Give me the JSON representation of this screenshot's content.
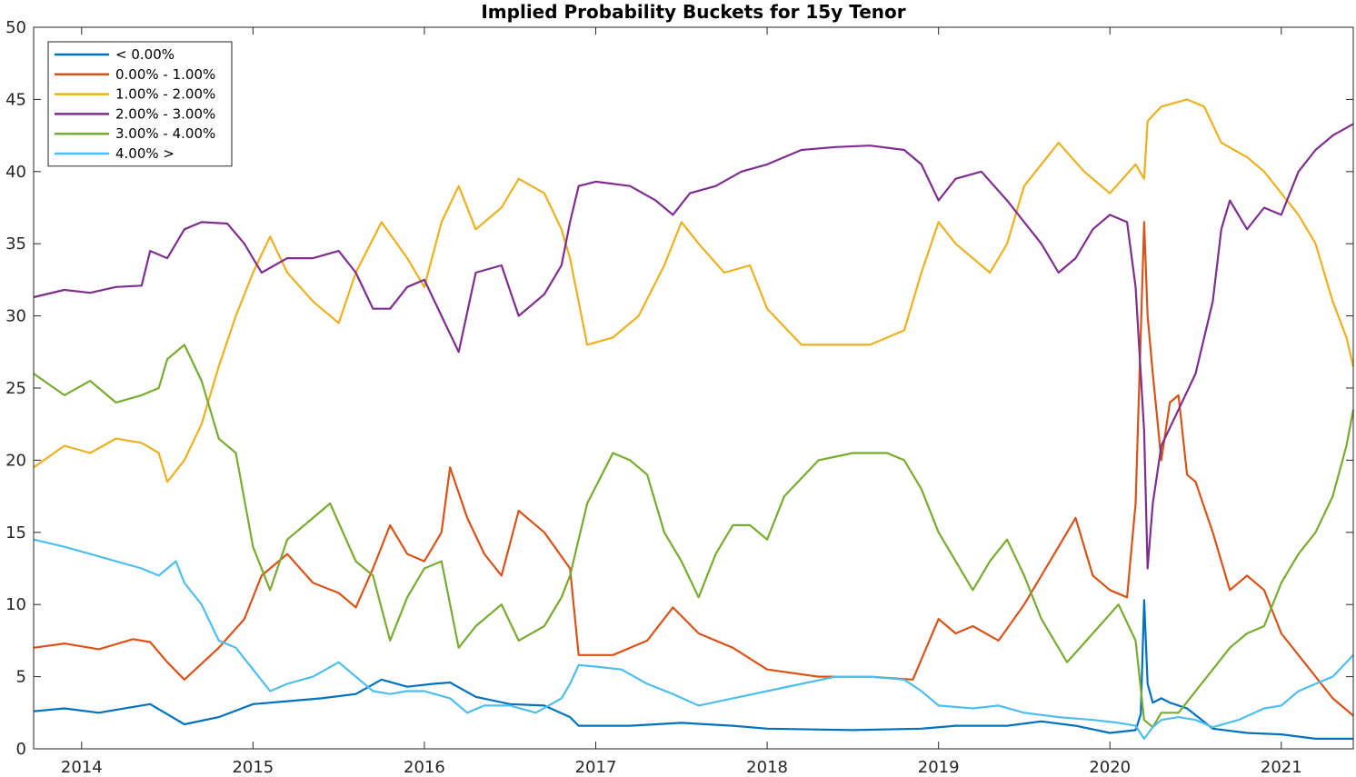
{
  "chart_data": {
    "type": "line",
    "title": "Implied Probability Buckets for 15y Tenor",
    "xlabel": "",
    "ylabel": "",
    "xlim": [
      2013.72,
      2021.42
    ],
    "ylim": [
      0,
      50
    ],
    "x_ticks": [
      2014,
      2015,
      2016,
      2017,
      2018,
      2019,
      2020,
      2021
    ],
    "x_tick_labels": [
      "2014",
      "2015",
      "2016",
      "2017",
      "2018",
      "2019",
      "2020",
      "2021"
    ],
    "y_ticks": [
      0,
      5,
      10,
      15,
      20,
      25,
      30,
      35,
      40,
      45,
      50
    ],
    "y_tick_labels": [
      "0",
      "5",
      "10",
      "15",
      "20",
      "25",
      "30",
      "35",
      "40",
      "45",
      "50"
    ],
    "grid": false,
    "legend_position": "top-left",
    "series": [
      {
        "name": "< 0.00%",
        "color": "#0072BD",
        "x": [
          2013.72,
          2013.9,
          2014.1,
          2014.3,
          2014.4,
          2014.5,
          2014.6,
          2014.8,
          2015.0,
          2015.2,
          2015.4,
          2015.6,
          2015.75,
          2015.9,
          2016.05,
          2016.15,
          2016.3,
          2016.5,
          2016.7,
          2016.85,
          2016.9,
          2017.2,
          2017.5,
          2017.8,
          2018.0,
          2018.5,
          2018.9,
          2019.1,
          2019.4,
          2019.6,
          2019.8,
          2020.0,
          2020.15,
          2020.18,
          2020.2,
          2020.22,
          2020.25,
          2020.3,
          2020.35,
          2020.45,
          2020.6,
          2020.8,
          2021.0,
          2021.2,
          2021.42
        ],
        "y": [
          2.6,
          2.8,
          2.5,
          2.9,
          3.1,
          2.4,
          1.7,
          2.2,
          3.1,
          3.3,
          3.5,
          3.8,
          4.8,
          4.3,
          4.5,
          4.6,
          3.6,
          3.1,
          3.0,
          2.2,
          1.6,
          1.6,
          1.8,
          1.6,
          1.4,
          1.3,
          1.4,
          1.6,
          1.6,
          1.9,
          1.6,
          1.1,
          1.3,
          2.4,
          10.3,
          4.5,
          3.2,
          3.5,
          3.2,
          2.8,
          1.4,
          1.1,
          1.0,
          0.7,
          0.7
        ]
      },
      {
        "name": "0.00% - 1.00%",
        "color": "#D95319",
        "x": [
          2013.72,
          2013.9,
          2014.1,
          2014.3,
          2014.4,
          2014.5,
          2014.6,
          2014.8,
          2014.95,
          2015.05,
          2015.2,
          2015.35,
          2015.5,
          2015.6,
          2015.7,
          2015.8,
          2015.9,
          2016.0,
          2016.1,
          2016.15,
          2016.25,
          2016.35,
          2016.45,
          2016.55,
          2016.7,
          2016.85,
          2016.9,
          2017.1,
          2017.3,
          2017.45,
          2017.6,
          2017.8,
          2018.0,
          2018.3,
          2018.6,
          2018.85,
          2019.0,
          2019.1,
          2019.2,
          2019.35,
          2019.5,
          2019.6,
          2019.7,
          2019.8,
          2019.9,
          2020.0,
          2020.1,
          2020.15,
          2020.2,
          2020.22,
          2020.25,
          2020.3,
          2020.35,
          2020.4,
          2020.45,
          2020.5,
          2020.6,
          2020.7,
          2020.8,
          2020.9,
          2021.0,
          2021.1,
          2021.2,
          2021.3,
          2021.42
        ],
        "y": [
          7.0,
          7.3,
          6.9,
          7.6,
          7.4,
          6.0,
          4.8,
          7.0,
          9.0,
          12.0,
          13.5,
          11.5,
          10.8,
          9.8,
          12.5,
          15.5,
          13.5,
          13.0,
          15.0,
          19.5,
          16.0,
          13.5,
          12.0,
          16.5,
          15.0,
          12.5,
          6.5,
          6.5,
          7.5,
          9.8,
          8.0,
          7.0,
          5.5,
          5.0,
          5.0,
          4.8,
          9.0,
          8.0,
          8.5,
          7.5,
          10.0,
          12.0,
          14.0,
          16.0,
          12.0,
          11.0,
          10.5,
          17.0,
          36.5,
          30.0,
          26.0,
          20.0,
          24.0,
          24.5,
          19.0,
          18.5,
          15.0,
          11.0,
          12.0,
          11.0,
          8.0,
          6.5,
          5.0,
          3.5,
          2.3
        ]
      },
      {
        "name": "1.00% - 2.00%",
        "color": "#EDB120",
        "x": [
          2013.72,
          2013.9,
          2014.05,
          2014.2,
          2014.35,
          2014.45,
          2014.5,
          2014.6,
          2014.7,
          2014.8,
          2014.9,
          2015.0,
          2015.1,
          2015.2,
          2015.35,
          2015.5,
          2015.6,
          2015.75,
          2015.9,
          2016.0,
          2016.1,
          2016.2,
          2016.3,
          2016.45,
          2016.55,
          2016.7,
          2016.8,
          2016.85,
          2016.95,
          2017.1,
          2017.25,
          2017.4,
          2017.5,
          2017.6,
          2017.75,
          2017.9,
          2018.0,
          2018.2,
          2018.4,
          2018.6,
          2018.8,
          2018.9,
          2019.0,
          2019.1,
          2019.3,
          2019.4,
          2019.5,
          2019.6,
          2019.7,
          2019.85,
          2020.0,
          2020.15,
          2020.2,
          2020.22,
          2020.3,
          2020.45,
          2020.55,
          2020.65,
          2020.8,
          2020.9,
          2021.0,
          2021.1,
          2021.2,
          2021.3,
          2021.38,
          2021.42
        ],
        "y": [
          19.5,
          21.0,
          20.5,
          21.5,
          21.2,
          20.5,
          18.5,
          20.0,
          22.5,
          26.5,
          30.0,
          33.0,
          35.5,
          33.0,
          31.0,
          29.5,
          33.0,
          36.5,
          34.0,
          32.0,
          36.5,
          39.0,
          36.0,
          37.5,
          39.5,
          38.5,
          36.0,
          34.0,
          28.0,
          28.5,
          30.0,
          33.5,
          36.5,
          35.0,
          33.0,
          33.5,
          30.5,
          28.0,
          28.0,
          28.0,
          29.0,
          33.0,
          36.5,
          35.0,
          33.0,
          35.0,
          39.0,
          40.5,
          42.0,
          40.0,
          38.5,
          40.5,
          39.5,
          43.5,
          44.5,
          45.0,
          44.5,
          42.0,
          41.0,
          40.0,
          38.5,
          37.0,
          35.0,
          31.0,
          28.5,
          26.5
        ]
      },
      {
        "name": "2.00% - 3.00%",
        "color": "#7E2F8E",
        "x": [
          2013.72,
          2013.9,
          2014.05,
          2014.2,
          2014.35,
          2014.4,
          2014.5,
          2014.6,
          2014.7,
          2014.85,
          2014.95,
          2015.05,
          2015.2,
          2015.35,
          2015.5,
          2015.6,
          2015.7,
          2015.8,
          2015.9,
          2016.0,
          2016.1,
          2016.2,
          2016.3,
          2016.45,
          2016.55,
          2016.7,
          2016.8,
          2016.85,
          2016.9,
          2017.0,
          2017.2,
          2017.35,
          2017.45,
          2017.55,
          2017.7,
          2017.85,
          2018.0,
          2018.2,
          2018.4,
          2018.6,
          2018.8,
          2018.9,
          2019.0,
          2019.1,
          2019.25,
          2019.4,
          2019.5,
          2019.6,
          2019.7,
          2019.8,
          2019.9,
          2020.0,
          2020.1,
          2020.15,
          2020.2,
          2020.22,
          2020.25,
          2020.3,
          2020.4,
          2020.5,
          2020.6,
          2020.65,
          2020.7,
          2020.8,
          2020.9,
          2021.0,
          2021.1,
          2021.2,
          2021.3,
          2021.42
        ],
        "y": [
          31.3,
          31.8,
          31.6,
          32.0,
          32.1,
          34.5,
          34.0,
          36.0,
          36.5,
          36.4,
          35.0,
          33.0,
          34.0,
          34.0,
          34.5,
          33.0,
          30.5,
          30.5,
          32.0,
          32.5,
          30.0,
          27.5,
          33.0,
          33.5,
          30.0,
          31.5,
          33.5,
          36.5,
          39.0,
          39.3,
          39.0,
          38.0,
          37.0,
          38.5,
          39.0,
          40.0,
          40.5,
          41.5,
          41.7,
          41.8,
          41.5,
          40.5,
          38.0,
          39.5,
          40.0,
          38.0,
          36.5,
          35.0,
          33.0,
          34.0,
          36.0,
          37.0,
          36.5,
          32.0,
          22.0,
          12.5,
          17.0,
          21.0,
          23.5,
          26.0,
          31.0,
          36.0,
          38.0,
          36.0,
          37.5,
          37.0,
          40.0,
          41.5,
          42.5,
          43.3
        ]
      },
      {
        "name": "3.00% - 4.00%",
        "color": "#77AC30",
        "x": [
          2013.72,
          2013.9,
          2014.05,
          2014.2,
          2014.35,
          2014.45,
          2014.5,
          2014.6,
          2014.7,
          2014.8,
          2014.9,
          2015.0,
          2015.1,
          2015.2,
          2015.35,
          2015.45,
          2015.6,
          2015.7,
          2015.8,
          2015.9,
          2016.0,
          2016.1,
          2016.2,
          2016.3,
          2016.45,
          2016.55,
          2016.7,
          2016.8,
          2016.85,
          2016.95,
          2017.1,
          2017.2,
          2017.3,
          2017.4,
          2017.5,
          2017.6,
          2017.7,
          2017.8,
          2017.9,
          2018.0,
          2018.1,
          2018.3,
          2018.5,
          2018.7,
          2018.8,
          2018.9,
          2019.0,
          2019.2,
          2019.3,
          2019.4,
          2019.5,
          2019.6,
          2019.75,
          2019.9,
          2020.05,
          2020.15,
          2020.2,
          2020.25,
          2020.3,
          2020.4,
          2020.5,
          2020.6,
          2020.7,
          2020.8,
          2020.9,
          2021.0,
          2021.1,
          2021.2,
          2021.3,
          2021.38,
          2021.42
        ],
        "y": [
          26.0,
          24.5,
          25.5,
          24.0,
          24.5,
          25.0,
          27.0,
          28.0,
          25.5,
          21.5,
          20.5,
          14.0,
          11.0,
          14.5,
          16.0,
          17.0,
          13.0,
          12.0,
          7.5,
          10.5,
          12.5,
          13.0,
          7.0,
          8.5,
          10.0,
          7.5,
          8.5,
          10.5,
          12.0,
          17.0,
          20.5,
          20.0,
          19.0,
          15.0,
          13.0,
          10.5,
          13.5,
          15.5,
          15.5,
          14.5,
          17.5,
          20.0,
          20.5,
          20.5,
          20.0,
          18.0,
          15.0,
          11.0,
          13.0,
          14.5,
          12.0,
          9.0,
          6.0,
          8.0,
          10.0,
          7.5,
          2.0,
          1.5,
          2.5,
          2.5,
          4.0,
          5.5,
          7.0,
          8.0,
          8.5,
          11.5,
          13.5,
          15.0,
          17.5,
          21.0,
          23.5
        ]
      },
      {
        "name": "4.00% >",
        "color": "#4DBEEE",
        "x": [
          2013.72,
          2013.9,
          2014.05,
          2014.2,
          2014.35,
          2014.45,
          2014.55,
          2014.6,
          2014.7,
          2014.8,
          2014.9,
          2015.0,
          2015.1,
          2015.2,
          2015.35,
          2015.5,
          2015.6,
          2015.7,
          2015.8,
          2015.9,
          2016.0,
          2016.15,
          2016.25,
          2016.35,
          2016.5,
          2016.65,
          2016.8,
          2016.85,
          2016.9,
          2017.0,
          2017.15,
          2017.3,
          2017.45,
          2017.6,
          2017.8,
          2018.0,
          2018.2,
          2018.4,
          2018.6,
          2018.8,
          2018.9,
          2019.0,
          2019.2,
          2019.35,
          2019.5,
          2019.7,
          2019.9,
          2020.05,
          2020.15,
          2020.2,
          2020.25,
          2020.3,
          2020.4,
          2020.5,
          2020.6,
          2020.75,
          2020.9,
          2021.0,
          2021.1,
          2021.2,
          2021.3,
          2021.38,
          2021.42
        ],
        "y": [
          14.5,
          14.0,
          13.5,
          13.0,
          12.5,
          12.0,
          13.0,
          11.5,
          10.0,
          7.5,
          7.0,
          5.5,
          4.0,
          4.5,
          5.0,
          6.0,
          5.0,
          4.0,
          3.8,
          4.0,
          4.0,
          3.5,
          2.5,
          3.0,
          3.0,
          2.5,
          3.5,
          4.5,
          5.8,
          5.7,
          5.5,
          4.5,
          3.8,
          3.0,
          3.5,
          4.0,
          4.5,
          5.0,
          5.0,
          4.8,
          4.0,
          3.0,
          2.8,
          3.0,
          2.5,
          2.2,
          2.0,
          1.8,
          1.6,
          0.7,
          1.5,
          2.0,
          2.2,
          2.0,
          1.5,
          2.0,
          2.8,
          3.0,
          4.0,
          4.5,
          5.0,
          6.0,
          6.5
        ]
      }
    ]
  }
}
